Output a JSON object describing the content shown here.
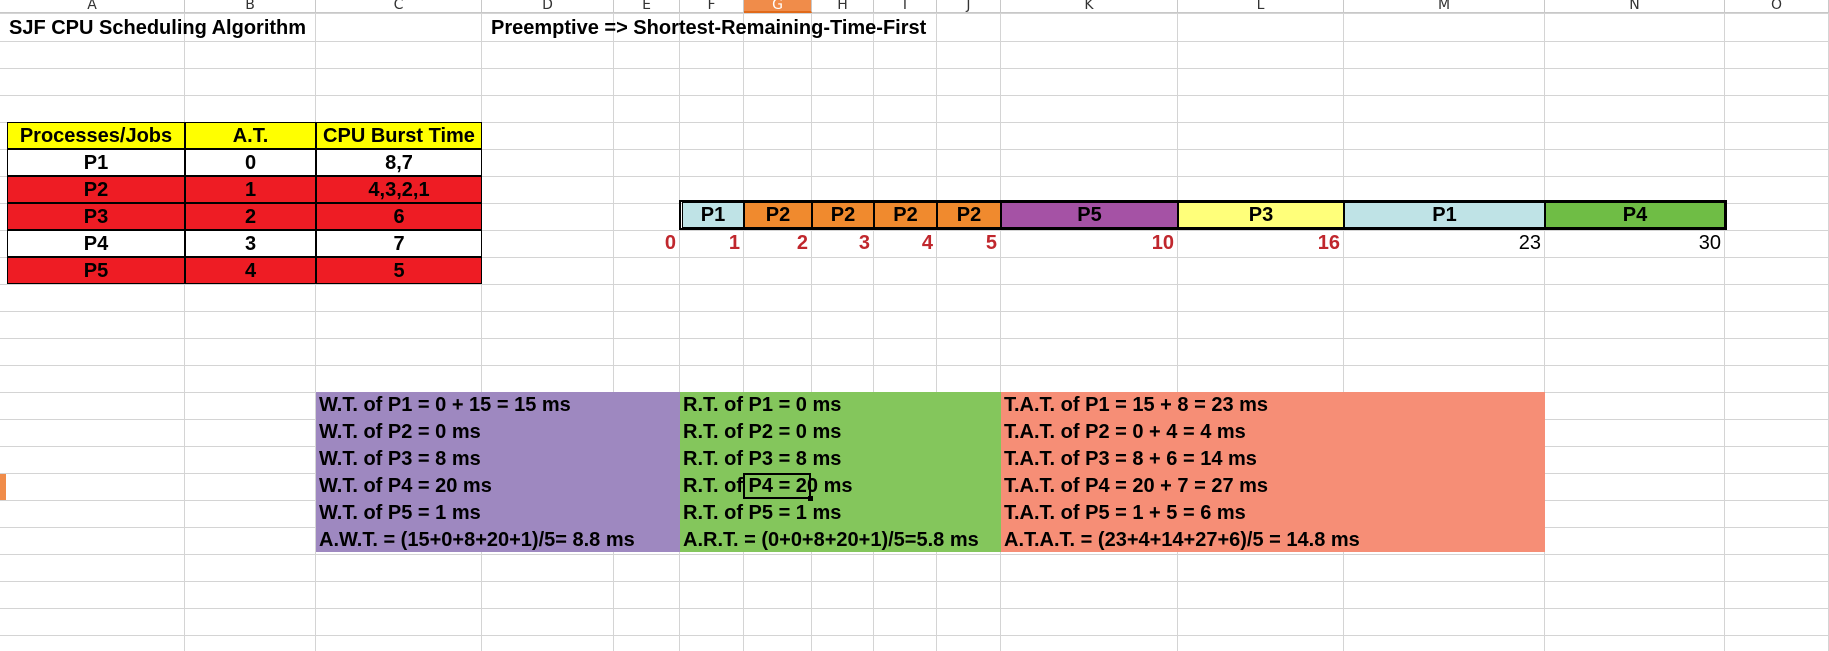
{
  "columns": [
    "A",
    "B",
    "C",
    "D",
    "E",
    "F",
    "G",
    "H",
    "I",
    "J",
    "K",
    "L",
    "M",
    "N",
    "O"
  ],
  "selected_column": "G",
  "title": "SJF CPU Scheduling Algorithm",
  "subtitle": "Preemptive => Shortest-Remaining-Time-First",
  "table": {
    "headers": [
      "Processes/Jobs",
      "A.T.",
      "CPU Burst Time"
    ],
    "rows": [
      {
        "process": "P1",
        "at": "0",
        "burst": "8,7"
      },
      {
        "process": "P2",
        "at": "1",
        "burst": "4,3,2,1"
      },
      {
        "process": "P3",
        "at": "2",
        "burst": "6"
      },
      {
        "process": "P4",
        "at": "3",
        "burst": "7"
      },
      {
        "process": "P5",
        "at": "4",
        "burst": "5"
      }
    ]
  },
  "gantt": {
    "blocks": [
      "P1",
      "P2",
      "P2",
      "P2",
      "P2",
      "P5",
      "P3",
      "P1",
      "P4"
    ],
    "ticks": [
      "0",
      "1",
      "2",
      "3",
      "4",
      "5",
      "10",
      "16",
      "23",
      "30"
    ]
  },
  "waiting": [
    "W.T. of P1 = 0 + 15 = 15 ms",
    "W.T. of P2 = 0 ms",
    "W.T. of P3 = 8 ms",
    "W.T. of P4 = 20 ms",
    "W.T. of P5 = 1 ms",
    "A.W.T. = (15+0+8+20+1)/5= 8.8 ms"
  ],
  "response": [
    "R.T. of P1 =  0 ms",
    "R.T. of P2 =  0 ms",
    "R.T. of P3 =  8 ms",
    "R.T. of P4 =  20 ms",
    "R.T. of P5 =  1 ms",
    "A.R.T. = (0+0+8+20+1)/5=5.8 ms"
  ],
  "turnaround": [
    "T.A.T. of P1 = 15 + 8 = 23 ms",
    "T.A.T. of P2 = 0 + 4 = 4 ms",
    "T.A.T. of P3 = 8 + 6 = 14 ms",
    "T.A.T. of P4 = 20 + 7 = 27 ms",
    "T.A.T. of P5 = 1 + 5 = 6 ms",
    "A.T.A.T. = (23+4+14+27+6)/5 = 14.8 ms"
  ],
  "colors": {
    "header_yellow": "#ffff00",
    "row_red": "#ee1c24",
    "gantt_p1": "#bfe3e6",
    "gantt_p2": "#f08a2e",
    "gantt_p5": "#a552a5",
    "gantt_p3": "#ffff7a",
    "gantt_p4": "#6fbd45",
    "panel_wt": "#9e88c0",
    "panel_rt": "#84c65c",
    "panel_tat": "#f68e76",
    "tick_red": "#c0272d"
  }
}
